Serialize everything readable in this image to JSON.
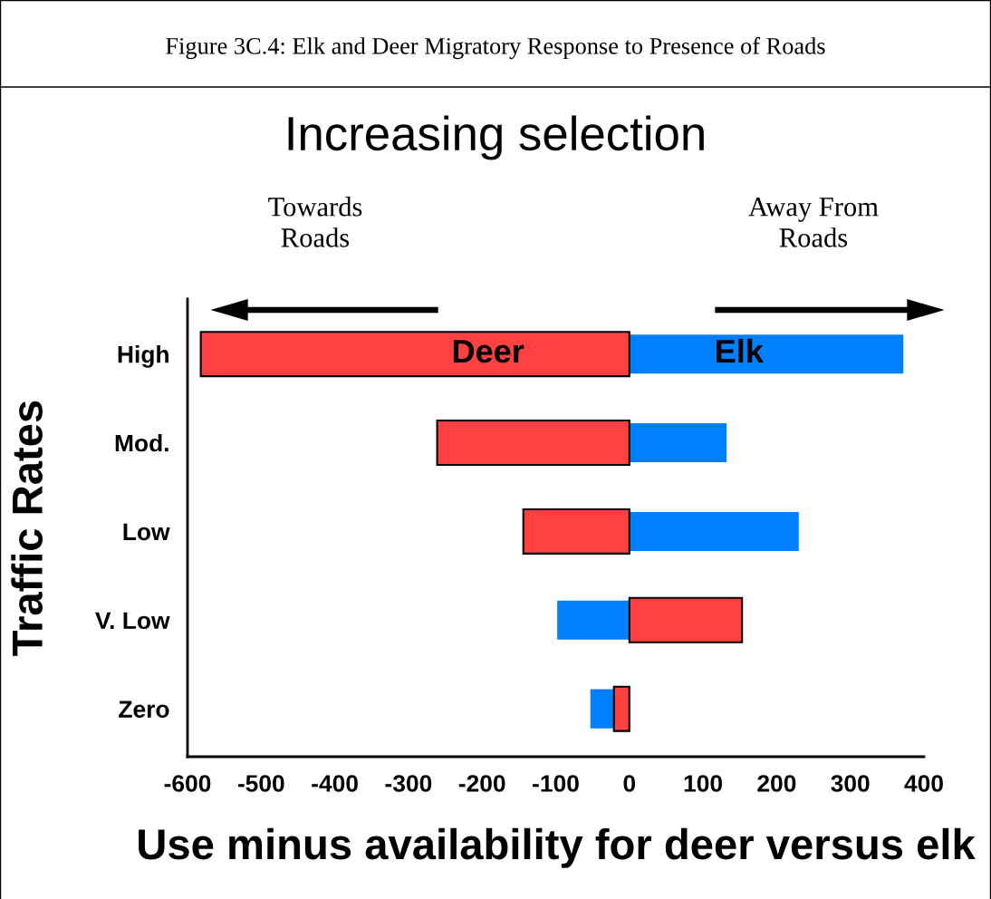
{
  "chart_data": {
    "type": "bar",
    "orientation": "horizontal",
    "title": "Figure 3C.4: Elk and Deer Migratory Response to Presence of Roads",
    "subtitle": "Increasing selection",
    "annotations": [
      "Towards\nRoads",
      "Away From\nRoads"
    ],
    "categories": [
      "High",
      "Mod.",
      "Low",
      "V. Low",
      "Zero"
    ],
    "series": [
      {
        "name": "Elk",
        "color": "#0080ff",
        "values": [
          372,
          132,
          230,
          -98,
          -53
        ]
      },
      {
        "name": "Deer",
        "color": "#ff4040",
        "values": [
          -582,
          -261,
          -144,
          153,
          -21
        ]
      }
    ],
    "xlim": [
      -600,
      400
    ],
    "xticks": [
      -600,
      -500,
      -400,
      -300,
      -200,
      -100,
      0,
      100,
      200,
      300,
      400
    ],
    "xlabel": "Use minus availability for deer versus elk",
    "ylabel": "Traffic Rates",
    "grid": false,
    "legend": false
  }
}
